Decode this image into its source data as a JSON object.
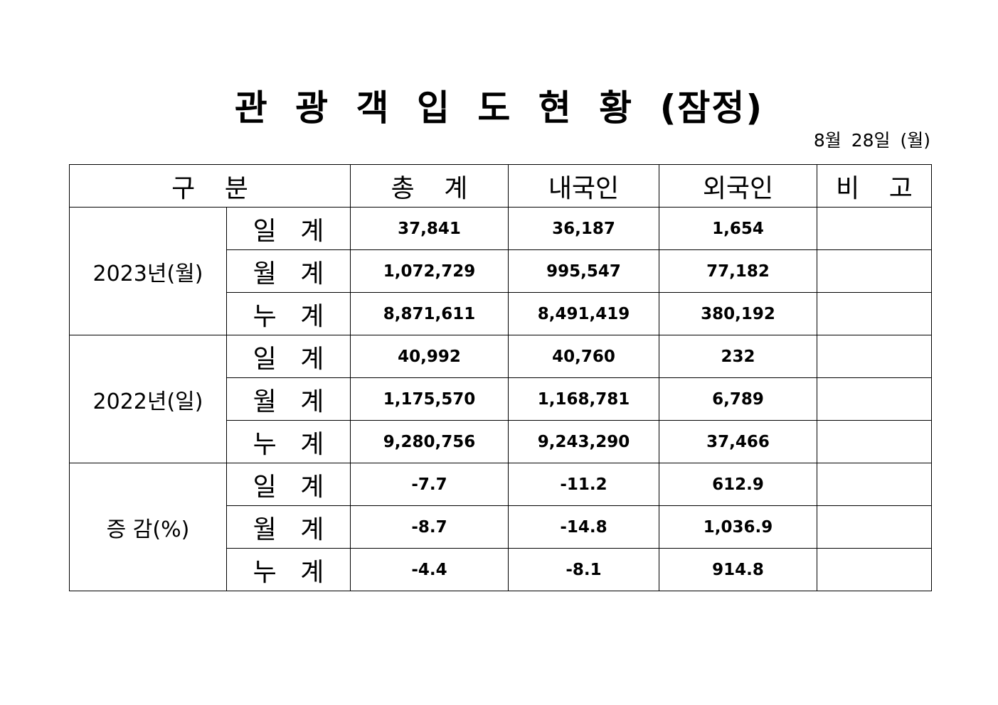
{
  "header": {
    "title": "관 광 객 입 도 현 황 (잠정)",
    "date": "8월 28일 (월)"
  },
  "table": {
    "columns": [
      "구 분",
      "총 계",
      "내국인",
      "외국인",
      "비 고"
    ],
    "groups": [
      {
        "label": "2023년(월)",
        "rows": [
          {
            "label": "일 계",
            "values": [
              "37,841",
              "36,187",
              "1,654"
            ]
          },
          {
            "label": "월 계",
            "values": [
              "1,072,729",
              "995,547",
              "77,182"
            ]
          },
          {
            "label": "누 계",
            "values": [
              "8,871,611",
              "8,491,419",
              "380,192"
            ]
          }
        ]
      },
      {
        "label": "2022년(일)",
        "rows": [
          {
            "label": "일 계",
            "values": [
              "40,992",
              "40,760",
              "232"
            ]
          },
          {
            "label": "월 계",
            "values": [
              "1,175,570",
              "1,168,781",
              "6,789"
            ]
          },
          {
            "label": "누 계",
            "values": [
              "9,280,756",
              "9,243,290",
              "37,466"
            ]
          }
        ]
      },
      {
        "label": "증 감(%)",
        "rows": [
          {
            "label": "일 계",
            "values": [
              "-7.7",
              "-11.2",
              "612.9"
            ]
          },
          {
            "label": "월 계",
            "values": [
              "-8.7",
              "-14.8",
              "1,036.9"
            ]
          },
          {
            "label": "누 계",
            "values": [
              "-4.4",
              "-8.1",
              "914.8"
            ]
          }
        ]
      }
    ]
  }
}
